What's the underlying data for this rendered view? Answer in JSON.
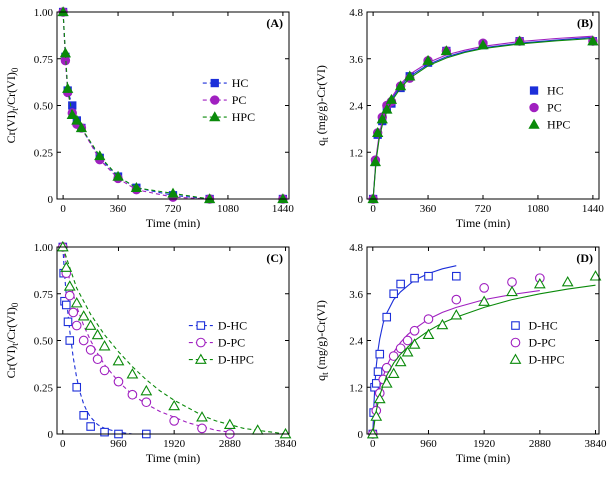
{
  "chart_data": [
    {
      "id": "A",
      "type": "line",
      "panel_label": "(A)",
      "xlabel": "Time (min)",
      "ylabel": "Cr(VI)t/Cr(VI)0",
      "ylabel_parts": {
        "base": "Cr(VI)",
        "sub1": "t",
        "mid": "/Cr(VI)",
        "sub2": "0"
      },
      "xlim": [
        -40,
        1480
      ],
      "ylim": [
        0,
        1.0
      ],
      "xticks": [
        0,
        360,
        720,
        1080,
        1440
      ],
      "xtick_labels": [
        "0",
        "360",
        "720",
        "1080",
        "1440"
      ],
      "yticks": [
        0,
        0.25,
        0.5,
        0.75,
        1.0
      ],
      "ytick_labels": [
        "0",
        "0.25",
        "0.50",
        "0.75",
        "1.00"
      ],
      "legend": "center-right",
      "series": [
        {
          "name": "HC",
          "color": "#1c2fd9",
          "marker": "square",
          "filled": true,
          "x": [
            0,
            15,
            30,
            60,
            90,
            120,
            240,
            360,
            480,
            720,
            960,
            1440
          ],
          "y": [
            1.0,
            0.76,
            0.58,
            0.5,
            0.42,
            0.38,
            0.22,
            0.12,
            0.06,
            0.02,
            0.0,
            0.0
          ],
          "curve_x": [
            0,
            15,
            30,
            60,
            90,
            120,
            240,
            360,
            480,
            720,
            960,
            1440
          ],
          "curve_y": [
            1.0,
            0.76,
            0.58,
            0.5,
            0.42,
            0.38,
            0.22,
            0.12,
            0.06,
            0.02,
            0.0,
            0.0
          ]
        },
        {
          "name": "PC",
          "color": "#a020c0",
          "marker": "circle",
          "filled": true,
          "x": [
            0,
            15,
            30,
            60,
            90,
            120,
            240,
            360,
            480,
            720,
            960,
            1440
          ],
          "y": [
            1.0,
            0.74,
            0.57,
            0.46,
            0.4,
            0.38,
            0.21,
            0.11,
            0.05,
            0.01,
            0.0,
            0.0
          ],
          "curve_x": [
            0,
            15,
            30,
            60,
            90,
            120,
            240,
            360,
            480,
            720,
            960,
            1440
          ],
          "curve_y": [
            1.0,
            0.74,
            0.57,
            0.46,
            0.4,
            0.38,
            0.21,
            0.11,
            0.05,
            0.01,
            0.0,
            0.0
          ]
        },
        {
          "name": "HPC",
          "color": "#0a8a0a",
          "marker": "triangle",
          "filled": true,
          "x": [
            0,
            15,
            30,
            60,
            90,
            120,
            240,
            360,
            480,
            720,
            960,
            1440
          ],
          "y": [
            1.0,
            0.78,
            0.59,
            0.45,
            0.42,
            0.38,
            0.23,
            0.12,
            0.06,
            0.03,
            0.0,
            0.0
          ],
          "curve_x": [
            0,
            15,
            30,
            60,
            90,
            120,
            240,
            360,
            480,
            720,
            960,
            1440
          ],
          "curve_y": [
            1.0,
            0.78,
            0.59,
            0.45,
            0.42,
            0.38,
            0.23,
            0.12,
            0.06,
            0.03,
            0.0,
            0.0
          ]
        }
      ]
    },
    {
      "id": "B",
      "type": "scatter",
      "panel_label": "(B)",
      "xlabel": "Time (min)",
      "ylabel": "qt (mg/g)-Cr(VI)",
      "ylabel_parts": {
        "base": "q",
        "sub1": "t",
        "mid": " (mg/g)-Cr(VI)",
        "sub2": ""
      },
      "xlim": [
        -40,
        1480
      ],
      "ylim": [
        0,
        4.8
      ],
      "xticks": [
        0,
        360,
        720,
        1080,
        1440
      ],
      "xtick_labels": [
        "0",
        "360",
        "720",
        "1080",
        "1440"
      ],
      "yticks": [
        0,
        1.2,
        2.4,
        3.6,
        4.8
      ],
      "ytick_labels": [
        "0",
        "1.2",
        "2.4",
        "3.6",
        "4.8"
      ],
      "legend": "center-right",
      "series": [
        {
          "name": "HC",
          "color": "#1c2fd9",
          "marker": "square",
          "filled": true,
          "x": [
            0,
            15,
            30,
            60,
            90,
            120,
            180,
            240,
            360,
            480,
            720,
            960,
            1440
          ],
          "y": [
            0,
            0.95,
            1.65,
            2.0,
            2.3,
            2.45,
            2.85,
            3.15,
            3.5,
            3.8,
            3.95,
            4.05,
            4.05
          ],
          "curve_x": [
            0,
            20,
            40,
            60,
            90,
            120,
            180,
            240,
            360,
            480,
            600,
            720,
            960,
            1200,
            1440
          ],
          "curve_y": [
            0,
            1.05,
            1.6,
            1.95,
            2.3,
            2.55,
            2.9,
            3.15,
            3.45,
            3.65,
            3.78,
            3.88,
            4.0,
            4.08,
            4.15
          ]
        },
        {
          "name": "PC",
          "color": "#a020c0",
          "marker": "circle",
          "filled": true,
          "x": [
            0,
            15,
            30,
            60,
            90,
            120,
            180,
            240,
            360,
            480,
            720,
            960,
            1440
          ],
          "y": [
            0,
            1.0,
            1.7,
            2.1,
            2.4,
            2.5,
            2.9,
            3.1,
            3.55,
            3.8,
            4.0,
            4.05,
            4.05
          ],
          "curve_x": [
            0,
            20,
            40,
            60,
            90,
            120,
            180,
            240,
            360,
            480,
            600,
            720,
            960,
            1200,
            1440
          ],
          "curve_y": [
            0,
            1.1,
            1.65,
            2.0,
            2.35,
            2.6,
            2.95,
            3.2,
            3.5,
            3.7,
            3.82,
            3.92,
            4.04,
            4.12,
            4.18
          ]
        },
        {
          "name": "HPC",
          "color": "#0a8a0a",
          "marker": "triangle",
          "filled": true,
          "x": [
            0,
            15,
            30,
            60,
            90,
            120,
            180,
            240,
            360,
            480,
            720,
            960,
            1440
          ],
          "y": [
            0,
            0.95,
            1.7,
            2.05,
            2.3,
            2.55,
            2.9,
            3.15,
            3.55,
            3.8,
            3.95,
            4.05,
            4.05
          ],
          "curve_x": [
            0,
            20,
            40,
            60,
            90,
            120,
            180,
            240,
            360,
            480,
            600,
            720,
            960,
            1200,
            1440
          ],
          "curve_y": [
            0,
            1.0,
            1.55,
            1.9,
            2.25,
            2.5,
            2.85,
            3.1,
            3.42,
            3.62,
            3.76,
            3.86,
            3.98,
            4.06,
            4.12
          ]
        }
      ]
    },
    {
      "id": "C",
      "type": "line",
      "panel_label": "(C)",
      "xlabel": "Time (min)",
      "ylabel": "Cr(VI)t/Cr(VI)0",
      "ylabel_parts": {
        "base": "Cr(VI)",
        "sub1": "t",
        "mid": "/Cr(VI)",
        "sub2": "0"
      },
      "xlim": [
        -100,
        3900
      ],
      "ylim": [
        0,
        1.0
      ],
      "xticks": [
        0,
        960,
        1920,
        2880,
        3840
      ],
      "xtick_labels": [
        "0",
        "960",
        "1920",
        "2880",
        "3840"
      ],
      "yticks": [
        0,
        0.25,
        0.5,
        0.75,
        1.0
      ],
      "ytick_labels": [
        "0",
        "0.25",
        "0.50",
        "0.75",
        "1.00"
      ],
      "legend": "center-right",
      "series": [
        {
          "name": "D-HC",
          "color": "#1c2fd9",
          "marker": "square",
          "filled": false,
          "x": [
            0,
            15,
            30,
            60,
            90,
            120,
            240,
            360,
            480,
            720,
            960,
            1440
          ],
          "y": [
            1.0,
            0.86,
            0.71,
            0.69,
            0.6,
            0.5,
            0.25,
            0.1,
            0.04,
            0.01,
            0.0,
            0.0
          ],
          "curve_x": [
            0,
            30,
            60,
            90,
            120,
            180,
            240,
            300,
            360,
            420,
            480,
            600,
            720,
            960,
            1200,
            1440
          ],
          "curve_y": [
            1.0,
            0.86,
            0.74,
            0.64,
            0.55,
            0.41,
            0.3,
            0.22,
            0.16,
            0.12,
            0.09,
            0.05,
            0.03,
            0.01,
            0.0,
            0.0
          ]
        },
        {
          "name": "D-PC",
          "color": "#a020c0",
          "marker": "circle",
          "filled": false,
          "x": [
            0,
            60,
            120,
            180,
            240,
            360,
            480,
            600,
            720,
            960,
            1200,
            1440,
            1920,
            2400,
            2880
          ],
          "y": [
            1.0,
            0.86,
            0.74,
            0.65,
            0.58,
            0.5,
            0.45,
            0.4,
            0.34,
            0.28,
            0.21,
            0.17,
            0.07,
            0.03,
            0.0
          ],
          "curve_x": [
            0,
            120,
            240,
            360,
            480,
            600,
            720,
            960,
            1200,
            1440,
            1680,
            1920,
            2160,
            2400,
            2640,
            2880
          ],
          "curve_y": [
            1.0,
            0.82,
            0.68,
            0.58,
            0.5,
            0.43,
            0.37,
            0.28,
            0.21,
            0.16,
            0.12,
            0.09,
            0.06,
            0.04,
            0.02,
            0.01
          ]
        },
        {
          "name": "D-HPC",
          "color": "#0a8a0a",
          "marker": "triangle",
          "filled": false,
          "x": [
            0,
            60,
            120,
            240,
            360,
            480,
            600,
            720,
            960,
            1200,
            1440,
            1920,
            2400,
            2880,
            3360,
            3840
          ],
          "y": [
            1.0,
            0.89,
            0.79,
            0.7,
            0.63,
            0.58,
            0.53,
            0.47,
            0.39,
            0.32,
            0.23,
            0.15,
            0.09,
            0.05,
            0.02,
            0.0
          ],
          "curve_x": [
            0,
            240,
            480,
            720,
            960,
            1200,
            1440,
            1680,
            1920,
            2160,
            2400,
            2640,
            2880,
            3120,
            3360,
            3600,
            3840
          ],
          "curve_y": [
            1.0,
            0.78,
            0.64,
            0.53,
            0.44,
            0.36,
            0.29,
            0.23,
            0.18,
            0.14,
            0.1,
            0.07,
            0.05,
            0.03,
            0.02,
            0.01,
            0.0
          ]
        }
      ]
    },
    {
      "id": "D",
      "type": "scatter",
      "panel_label": "(D)",
      "xlabel": "Time (min)",
      "ylabel": "qt (mg/g)-Cr(VI)",
      "ylabel_parts": {
        "base": "q",
        "sub1": "t",
        "mid": " (mg/g)-Cr(VI)",
        "sub2": ""
      },
      "xlim": [
        -100,
        3900
      ],
      "ylim": [
        0,
        4.8
      ],
      "xticks": [
        0,
        960,
        1920,
        2880,
        3840
      ],
      "xtick_labels": [
        "0",
        "960",
        "1920",
        "2880",
        "3840"
      ],
      "yticks": [
        0,
        1.2,
        2.4,
        3.6,
        4.8
      ],
      "ytick_labels": [
        "0",
        "1.2",
        "2.4",
        "3.6",
        "4.8"
      ],
      "legend": "center-right",
      "series": [
        {
          "name": "D-HC",
          "color": "#1c2fd9",
          "marker": "square",
          "filled": false,
          "x": [
            0,
            15,
            30,
            60,
            90,
            120,
            240,
            360,
            480,
            720,
            960,
            1440
          ],
          "y": [
            0,
            0.55,
            1.2,
            1.3,
            1.6,
            2.05,
            3.0,
            3.6,
            3.85,
            4.0,
            4.05,
            4.05
          ],
          "curve_x": [
            0,
            20,
            40,
            60,
            90,
            120,
            180,
            240,
            360,
            480,
            720,
            960,
            1200,
            1440
          ],
          "curve_y": [
            0,
            0.8,
            1.35,
            1.75,
            2.15,
            2.45,
            2.85,
            3.1,
            3.45,
            3.65,
            3.95,
            4.12,
            4.24,
            4.32
          ]
        },
        {
          "name": "D-PC",
          "color": "#a020c0",
          "marker": "circle",
          "filled": false,
          "x": [
            0,
            60,
            120,
            180,
            240,
            360,
            480,
            600,
            720,
            960,
            1440,
            1920,
            2400,
            2880
          ],
          "y": [
            0,
            0.6,
            1.05,
            1.4,
            1.7,
            2.0,
            2.2,
            2.4,
            2.65,
            2.95,
            3.45,
            3.75,
            3.9,
            4.0
          ],
          "curve_x": [
            0,
            60,
            120,
            240,
            360,
            480,
            600,
            720,
            960,
            1200,
            1440,
            1920,
            2400,
            2880
          ],
          "curve_y": [
            0,
            0.75,
            1.2,
            1.75,
            2.1,
            2.35,
            2.55,
            2.7,
            2.95,
            3.12,
            3.25,
            3.45,
            3.58,
            3.68
          ]
        },
        {
          "name": "D-HPC",
          "color": "#0a8a0a",
          "marker": "triangle",
          "filled": false,
          "x": [
            0,
            60,
            120,
            240,
            360,
            480,
            600,
            720,
            960,
            1200,
            1440,
            1920,
            2400,
            2880,
            3360,
            3840
          ],
          "y": [
            0,
            0.45,
            0.9,
            1.3,
            1.55,
            1.85,
            2.1,
            2.3,
            2.55,
            2.8,
            3.05,
            3.4,
            3.65,
            3.85,
            3.9,
            4.05
          ],
          "curve_x": [
            0,
            60,
            120,
            240,
            360,
            480,
            720,
            960,
            1200,
            1440,
            1920,
            2400,
            2880,
            3360,
            3840
          ],
          "curve_y": [
            0,
            0.6,
            1.0,
            1.5,
            1.82,
            2.05,
            2.4,
            2.65,
            2.85,
            3.0,
            3.25,
            3.45,
            3.6,
            3.72,
            3.82
          ]
        }
      ]
    }
  ]
}
